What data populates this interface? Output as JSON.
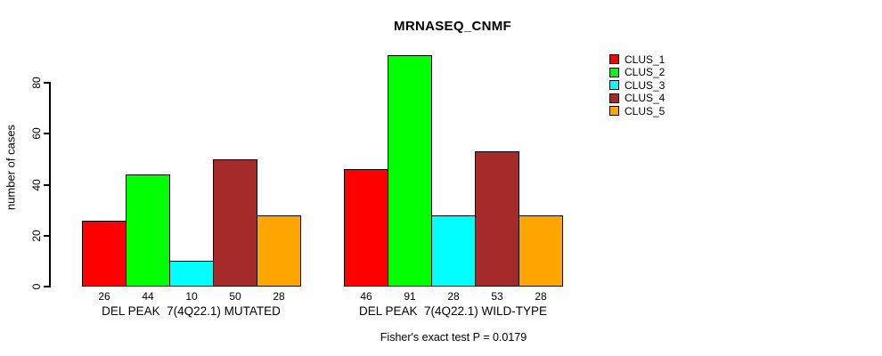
{
  "chart_data": {
    "type": "bar",
    "title": "MRNASEQ_CNMF",
    "ylabel": "number of cases",
    "xlabel": "",
    "yticks": [
      0,
      20,
      40,
      60,
      80
    ],
    "ylim": [
      0,
      91
    ],
    "grid": false,
    "legend_position": "top-right",
    "show_bar_values": true,
    "series": [
      {
        "name": "CLUS_1",
        "color": "#FF0000"
      },
      {
        "name": "CLUS_2",
        "color": "#00FF00"
      },
      {
        "name": "CLUS_3",
        "color": "#00FFFF"
      },
      {
        "name": "CLUS_4",
        "color": "#A52A2A"
      },
      {
        "name": "CLUS_5",
        "color": "#FFA500"
      }
    ],
    "groups": [
      {
        "label": "DEL PEAK  7(4Q22.1) MUTATED",
        "values": [
          26,
          44,
          10,
          50,
          28
        ]
      },
      {
        "label": "DEL PEAK  7(4Q22.1) WILD-TYPE",
        "values": [
          46,
          91,
          28,
          53,
          28
        ]
      }
    ],
    "annotation": "Fisher's exact test P = 0.0179"
  }
}
